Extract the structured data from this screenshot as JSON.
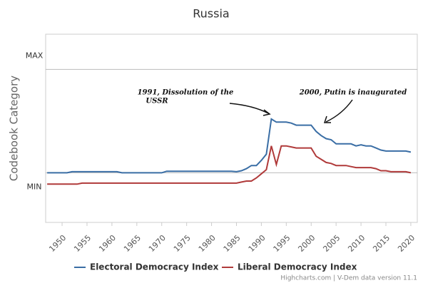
{
  "chart_data": {
    "type": "line",
    "title": "Russia",
    "y_label": "Codebook Category",
    "x": [
      1947,
      1948,
      1949,
      1950,
      1951,
      1952,
      1953,
      1954,
      1955,
      1956,
      1957,
      1958,
      1959,
      1960,
      1961,
      1962,
      1963,
      1964,
      1965,
      1966,
      1967,
      1968,
      1969,
      1970,
      1971,
      1972,
      1973,
      1974,
      1975,
      1976,
      1977,
      1978,
      1979,
      1980,
      1981,
      1982,
      1983,
      1984,
      1985,
      1986,
      1987,
      1988,
      1989,
      1990,
      1991,
      1992,
      1993,
      1994,
      1995,
      1996,
      1997,
      1998,
      1999,
      2000,
      2001,
      2002,
      2003,
      2004,
      2005,
      2006,
      2007,
      2008,
      2009,
      2010,
      2011,
      2012,
      2013,
      2014,
      2015,
      2016,
      2017,
      2018,
      2019,
      2020
    ],
    "series": [
      {
        "name": "Electoral Democracy Index",
        "color": "#3a6ea5",
        "values": [
          0,
          0,
          0,
          0,
          0,
          0.01,
          0.01,
          0.01,
          0.01,
          0.01,
          0.01,
          0.01,
          0.01,
          0.01,
          0.01,
          0,
          0,
          0,
          0,
          0,
          0,
          0,
          0,
          0,
          0.015,
          0.015,
          0.015,
          0.015,
          0.015,
          0.015,
          0.015,
          0.015,
          0.015,
          0.015,
          0.015,
          0.015,
          0.015,
          0.015,
          0.01,
          0.02,
          0.04,
          0.07,
          0.07,
          0.12,
          0.18,
          0.52,
          0.49,
          0.49,
          0.49,
          0.48,
          0.46,
          0.46,
          0.46,
          0.46,
          0.4,
          0.36,
          0.33,
          0.32,
          0.28,
          0.28,
          0.28,
          0.28,
          0.26,
          0.27,
          0.26,
          0.26,
          0.24,
          0.22,
          0.21,
          0.21,
          0.21,
          0.21,
          0.21,
          0.2
        ]
      },
      {
        "name": "Liberal Democracy Index",
        "color": "#b03a3a",
        "values": [
          -0.11,
          -0.11,
          -0.11,
          -0.11,
          -0.11,
          -0.11,
          -0.11,
          -0.1,
          -0.1,
          -0.1,
          -0.1,
          -0.1,
          -0.1,
          -0.1,
          -0.1,
          -0.1,
          -0.1,
          -0.1,
          -0.1,
          -0.1,
          -0.1,
          -0.1,
          -0.1,
          -0.1,
          -0.1,
          -0.1,
          -0.1,
          -0.1,
          -0.1,
          -0.1,
          -0.1,
          -0.1,
          -0.1,
          -0.1,
          -0.1,
          -0.1,
          -0.1,
          -0.1,
          -0.1,
          -0.09,
          -0.08,
          -0.08,
          -0.05,
          -0.01,
          0.03,
          0.26,
          0.08,
          0.26,
          0.26,
          0.25,
          0.24,
          0.24,
          0.24,
          0.24,
          0.16,
          0.13,
          0.1,
          0.09,
          0.07,
          0.07,
          0.07,
          0.06,
          0.05,
          0.05,
          0.05,
          0.05,
          0.04,
          0.02,
          0.02,
          0.01,
          0.01,
          0.01,
          0.01,
          0
        ]
      }
    ],
    "xlim": [
      1946.7,
      2021.3
    ],
    "xticks": [
      1950,
      1955,
      1960,
      1965,
      1970,
      1975,
      1980,
      1985,
      1990,
      1995,
      2000,
      2005,
      2010,
      2015,
      2020
    ],
    "ylim": [
      -0.48,
      1.34
    ],
    "yticks": [
      {
        "value": 0,
        "label": "MIN"
      },
      {
        "value": 1,
        "label": "MAX"
      }
    ],
    "grid": true,
    "annotations": [
      {
        "lines": [
          "1991, Dissolution of the",
          "USSR"
        ]
      },
      {
        "lines": [
          "2000, Putin is inaugurated"
        ]
      }
    ],
    "credits": "Highcharts.com | V-Dem data version 11.1"
  }
}
